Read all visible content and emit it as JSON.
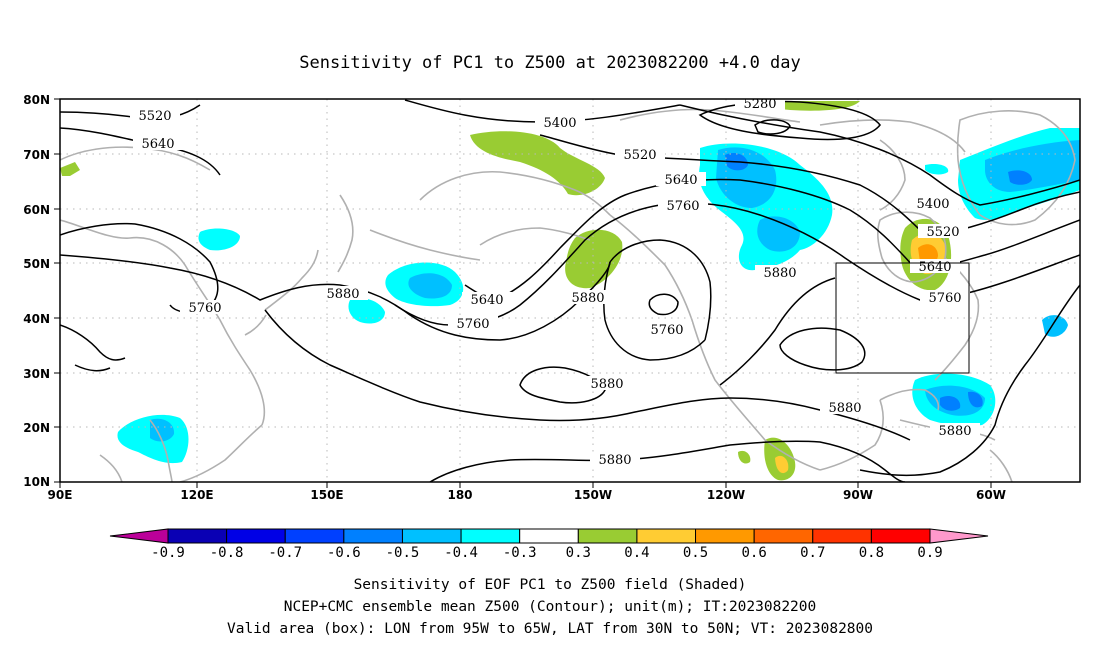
{
  "title": "Sensitivity of PC1 to Z500 at 2023082200 +4.0 day",
  "lat_labels": [
    "80N",
    "70N",
    "60N",
    "50N",
    "40N",
    "30N",
    "20N",
    "10N"
  ],
  "lon_labels": [
    "90E",
    "120E",
    "150E",
    "180",
    "150W",
    "120W",
    "90W",
    "60W"
  ],
  "contour_labels": [
    "5280",
    "5400",
    "5520",
    "5520",
    "5640",
    "5640",
    "5760",
    "5760",
    "5880",
    "5880",
    "5640",
    "5760",
    "5880",
    "5760",
    "5880",
    "5400",
    "5520",
    "5640",
    "5760",
    "5880",
    "5880",
    "5880"
  ],
  "colorbar": {
    "labels": [
      "-0.9",
      "-0.8",
      "-0.7",
      "-0.6",
      "-0.5",
      "-0.4",
      "-0.3",
      "0.3",
      "0.4",
      "0.5",
      "0.6",
      "0.7",
      "0.8",
      "0.9"
    ],
    "colors": [
      "#bb0099",
      "#0a00b4",
      "#0000e6",
      "#0040ff",
      "#0080ff",
      "#00c0ff",
      "#00ffff",
      "#ffffff",
      "#99cc33",
      "#ffcc33",
      "#ff9900",
      "#ff6600",
      "#ff3300",
      "#ff0000",
      "#ff99cc"
    ]
  },
  "footer": [
    "Sensitivity of EOF PC1 to Z500 field (Shaded)",
    "NCEP+CMC ensemble mean Z500 (Contour); unit(m); IT:2023082200",
    "Valid area (box): LON from 95W to 65W, LAT from 30N to 50N; VT: 2023082800"
  ]
}
